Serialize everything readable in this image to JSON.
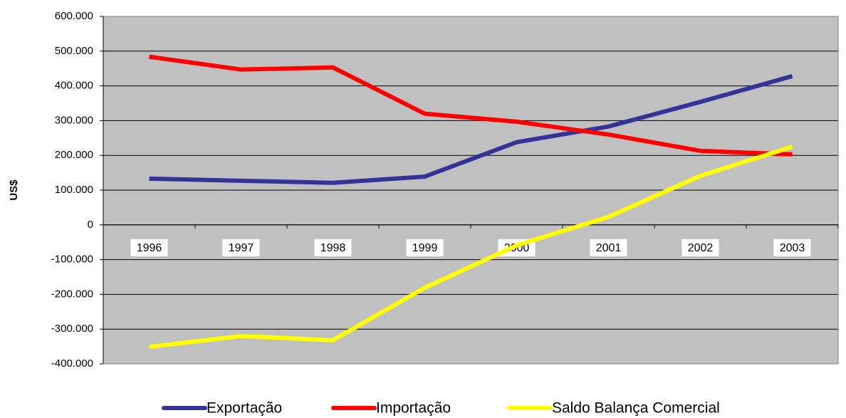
{
  "chart_data": {
    "type": "line",
    "y_label": "US$",
    "categories": [
      "1996",
      "1997",
      "1998",
      "1999",
      "2000",
      "2001",
      "2002",
      "2003"
    ],
    "series": [
      {
        "name": "Exportação",
        "color": "#333399",
        "values": [
          133000,
          127000,
          121000,
          139000,
          238000,
          283000,
          354000,
          428000
        ]
      },
      {
        "name": "Importação",
        "color": "#ff0000",
        "values": [
          484000,
          447000,
          453000,
          320000,
          297000,
          260000,
          213000,
          203000
        ]
      },
      {
        "name": "Saldo Balança Comercial",
        "color": "#ffff00",
        "values": [
          -351000,
          -320000,
          -332000,
          -181000,
          -59000,
          23000,
          141000,
          225000
        ]
      }
    ],
    "ylim": [
      -400000,
      600000
    ],
    "yticks": [
      {
        "value": -400000,
        "label": "-400.000"
      },
      {
        "value": -300000,
        "label": "-300.000"
      },
      {
        "value": -200000,
        "label": "-200.000"
      },
      {
        "value": -100000,
        "label": "-100.000"
      },
      0,
      {
        "value": 100000,
        "label": "100.000"
      },
      {
        "value": 200000,
        "label": "200.000"
      },
      {
        "value": 300000,
        "label": "300.000"
      },
      {
        "value": 400000,
        "label": "400.000"
      },
      {
        "value": 500000,
        "label": "500.000"
      },
      {
        "value": 600000,
        "label": "600.000"
      }
    ],
    "grid": true,
    "legend": "bottom"
  }
}
